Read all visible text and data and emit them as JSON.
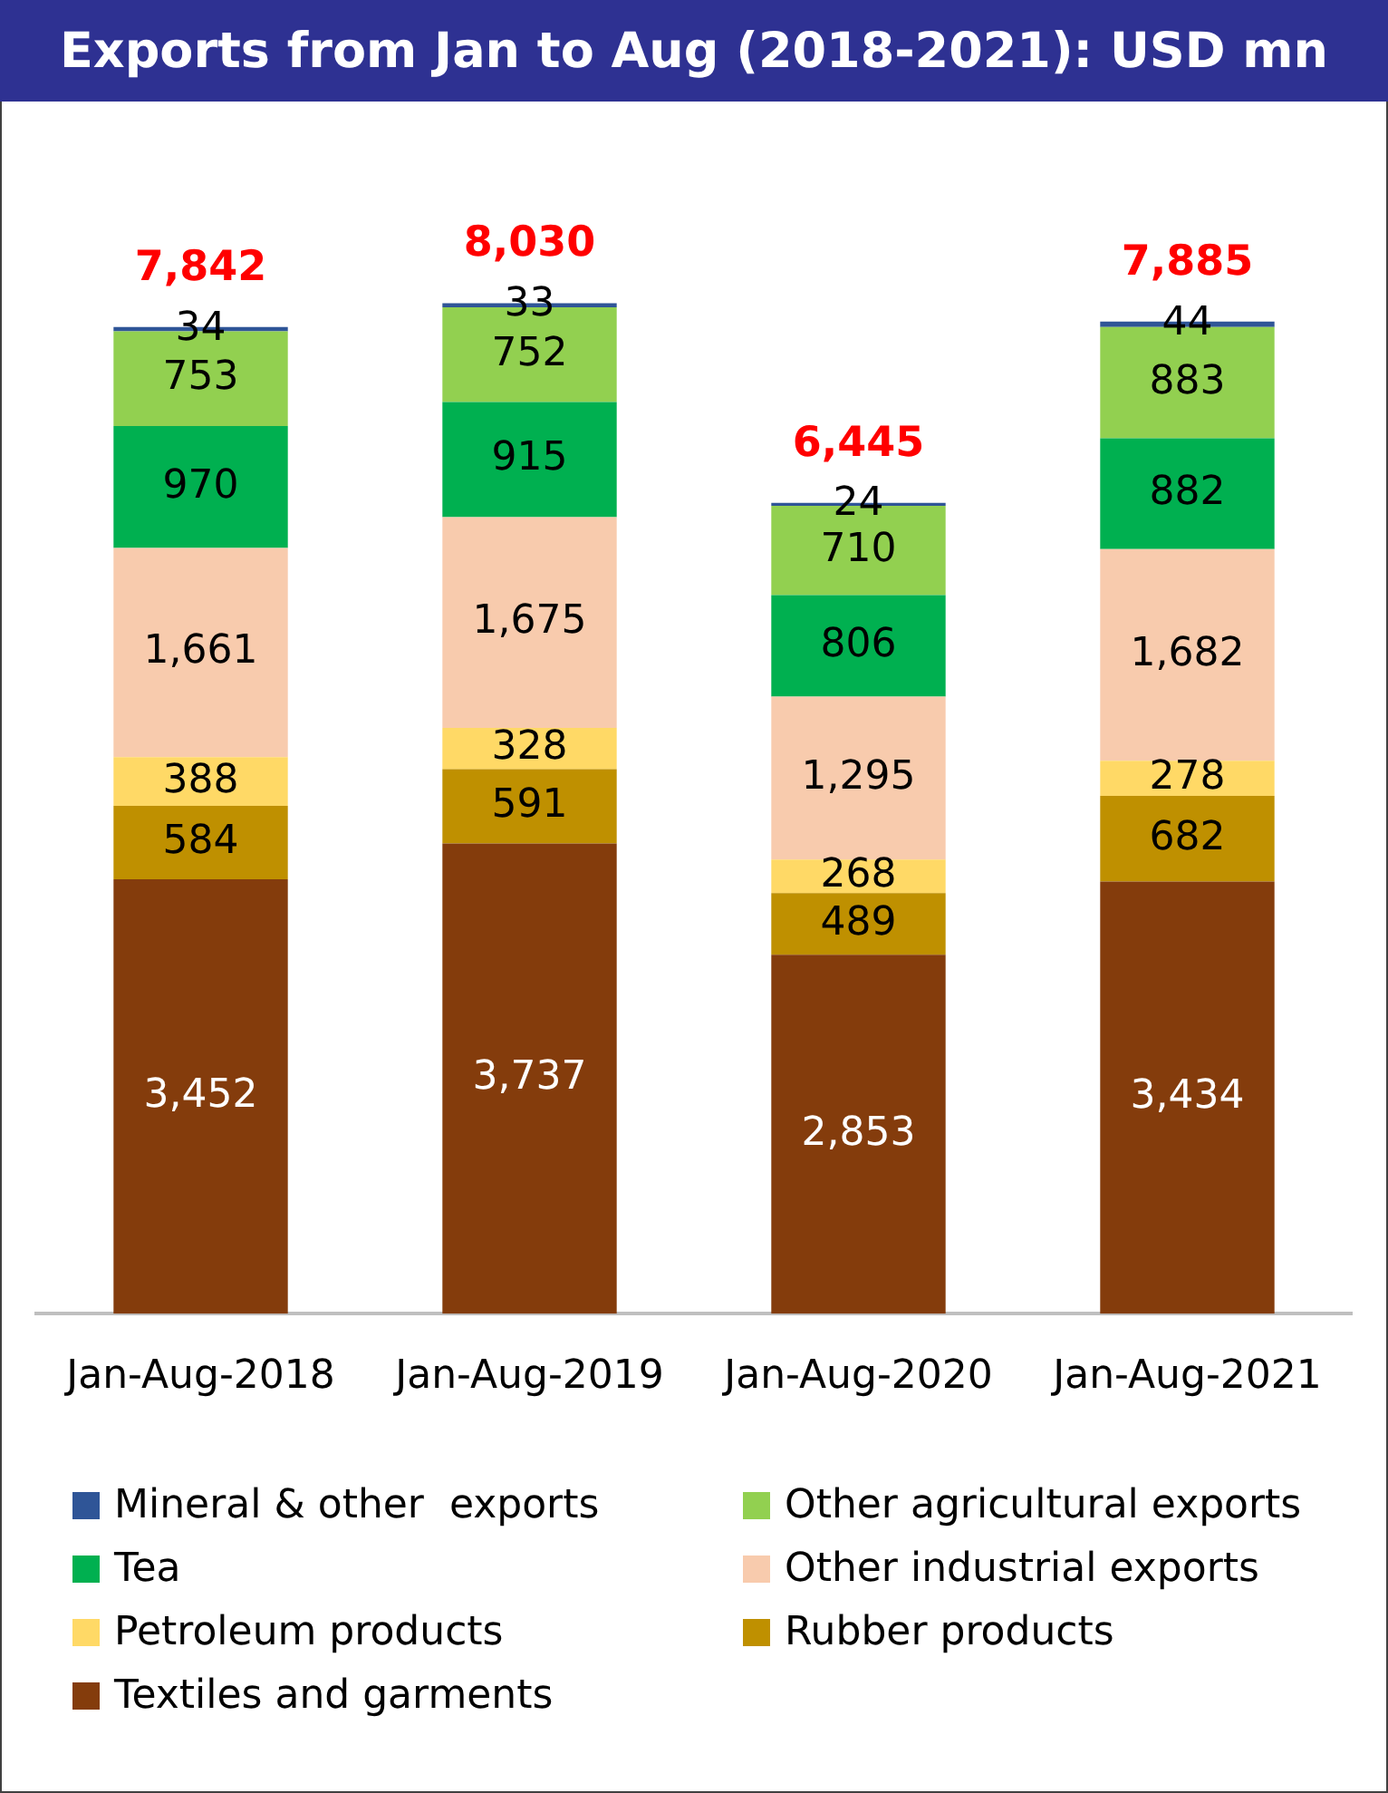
{
  "chart_data": {
    "type": "bar",
    "title": "Exports from Jan to Aug (2018-2021): USD mn",
    "categories": [
      "Jan-Aug-2018",
      "Jan-Aug-2019",
      "Jan-Aug-2020",
      "Jan-Aug-2021"
    ],
    "stacked": true,
    "legend": "bottom",
    "grid": false,
    "tick_labels": "x",
    "series": [
      {
        "name": "Textiles and garments",
        "color": "#843c0c",
        "values": [
          3452,
          3737,
          2853,
          3434
        ],
        "value_labels": [
          "3,452",
          "3,737",
          "2,853",
          "3,434"
        ]
      },
      {
        "name": "Rubber products",
        "color": "#bf9000",
        "values": [
          584,
          591,
          489,
          682
        ],
        "value_labels": [
          "584",
          "591",
          "489",
          "682"
        ]
      },
      {
        "name": "Petroleum products",
        "color": "#ffd966",
        "values": [
          388,
          328,
          268,
          278
        ],
        "value_labels": [
          "388",
          "328",
          "268",
          "278"
        ]
      },
      {
        "name": "Other industrial exports",
        "color": "#f8cbad",
        "values": [
          1661,
          1675,
          1295,
          1682
        ],
        "value_labels": [
          "1,661",
          "1,675",
          "1,295",
          "1,682"
        ]
      },
      {
        "name": "Tea",
        "color": "#00b050",
        "values": [
          970,
          915,
          806,
          882
        ],
        "value_labels": [
          "970",
          "915",
          "806",
          "882"
        ]
      },
      {
        "name": "Other agricultural exports",
        "color": "#92d050",
        "values": [
          753,
          752,
          710,
          883
        ],
        "value_labels": [
          "753",
          "752",
          "710",
          "883"
        ]
      },
      {
        "name": "Mineral & other  exports",
        "color": "#2f5597",
        "values": [
          34,
          33,
          24,
          44
        ],
        "value_labels": [
          "34",
          "33",
          "24",
          "44"
        ]
      }
    ],
    "totals": [
      "7,842",
      "8,030",
      "6,445",
      "7,885"
    ]
  }
}
